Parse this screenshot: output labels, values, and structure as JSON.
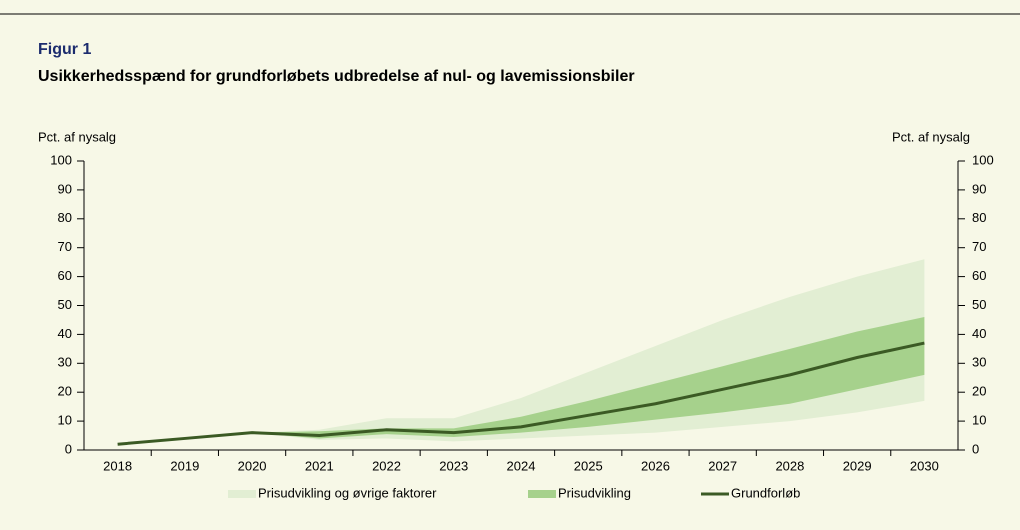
{
  "chart_data": {
    "type": "line",
    "title": "Figur 1",
    "subtitle": "Usikkerhedsspænd for grundforløbets udbredelse af nul- og lavemissionsbiler",
    "ylabel": "Pct. af nysalg",
    "y2label": "Pct. af nysalg",
    "categories": [
      "2018",
      "2019",
      "2020",
      "2021",
      "2022",
      "2023",
      "2024",
      "2025",
      "2026",
      "2027",
      "2028",
      "2029",
      "2030"
    ],
    "series": [
      {
        "name": "Prisudvikling og øvrige faktorer",
        "color": "#e2eed3",
        "kind": "band",
        "lower": [
          null,
          null,
          6,
          3.5,
          4,
          3,
          4,
          5,
          6,
          8,
          10,
          13,
          17
        ],
        "upper": [
          null,
          null,
          6,
          7,
          11,
          11,
          18,
          27,
          36,
          45,
          53,
          60,
          66
        ]
      },
      {
        "name": "Prisudvikling",
        "color": "#a6d18c",
        "kind": "band",
        "lower": [
          null,
          null,
          6,
          4,
          5.5,
          4.5,
          6,
          8,
          10.5,
          13,
          16,
          21,
          26
        ],
        "upper": [
          null,
          null,
          6,
          6.5,
          7.5,
          7.5,
          11.5,
          17,
          23,
          29,
          35,
          41,
          46
        ]
      },
      {
        "name": "Grundforløb",
        "color": "#3b5a24",
        "kind": "line",
        "values": [
          2,
          4,
          6,
          5,
          7,
          6,
          8,
          12,
          16,
          21,
          26,
          32,
          37
        ]
      }
    ],
    "ylim": [
      0,
      100
    ],
    "yticks": [
      0,
      10,
      20,
      30,
      40,
      50,
      60,
      70,
      80,
      90,
      100
    ],
    "y2lim": [
      0,
      100
    ],
    "y2ticks": [
      0,
      10,
      20,
      30,
      40,
      50,
      60,
      70,
      80,
      90,
      100
    ],
    "legend": "bottom"
  }
}
